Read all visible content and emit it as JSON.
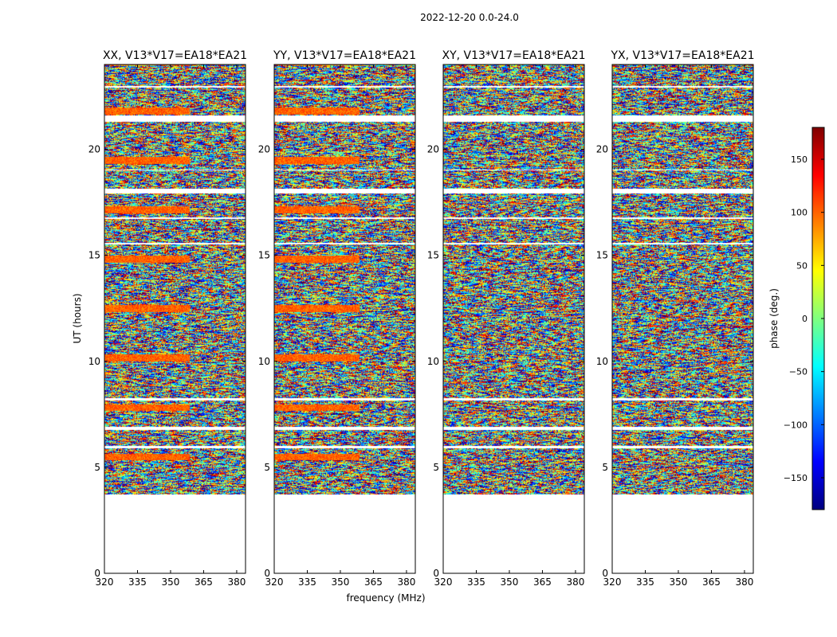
{
  "chart_data": {
    "type": "heatmap",
    "title": "2022-12-20 0.0-24.0",
    "xlabel": "frequency (MHz)",
    "ylabel": "UT (hours)",
    "xlim": [
      320,
      384
    ],
    "ylim": [
      0,
      24
    ],
    "xticks": [
      320,
      335,
      350,
      365,
      380
    ],
    "yticks": [
      0,
      5,
      10,
      15,
      20
    ],
    "data_start_ut": 3.7,
    "panels": [
      {
        "title": "XX, V13*V17=EA18*EA21",
        "baseline": "V13*V17=EA18*EA21",
        "correlation": "XX"
      },
      {
        "title": "YY, V13*V17=EA18*EA21",
        "baseline": "V13*V17=EA18*EA21",
        "correlation": "YY"
      },
      {
        "title": "XY, V13*V17=EA18*EA21",
        "baseline": "V13*V17=EA18*EA21",
        "correlation": "XY"
      },
      {
        "title": "YX, V13*V17=EA18*EA21",
        "baseline": "V13*V17=EA18*EA21",
        "correlation": "YX"
      }
    ],
    "gaps_ut": [
      [
        21.3,
        21.6
      ],
      [
        17.9,
        18.15
      ],
      [
        16.7,
        16.8
      ],
      [
        15.5,
        15.6
      ],
      [
        8.15,
        8.25
      ],
      [
        6.75,
        6.9
      ],
      [
        5.9,
        6.0
      ],
      [
        22.9,
        23.0
      ],
      [
        19.0,
        19.05
      ]
    ],
    "colorbar": {
      "label": "phase (deg.)",
      "range": [
        -180,
        180
      ],
      "ticks": [
        -150,
        -100,
        -50,
        0,
        50,
        100,
        150
      ],
      "tick_labels": [
        "−150",
        "−100",
        "−50",
        "0",
        "50",
        "100",
        "150"
      ],
      "colormap": "jet"
    }
  },
  "colors": {
    "jet": [
      "#00007f",
      "#0000ff",
      "#007fff",
      "#00ffff",
      "#7fff7f",
      "#ffff00",
      "#ff7f00",
      "#ff0000",
      "#7f0000"
    ]
  }
}
